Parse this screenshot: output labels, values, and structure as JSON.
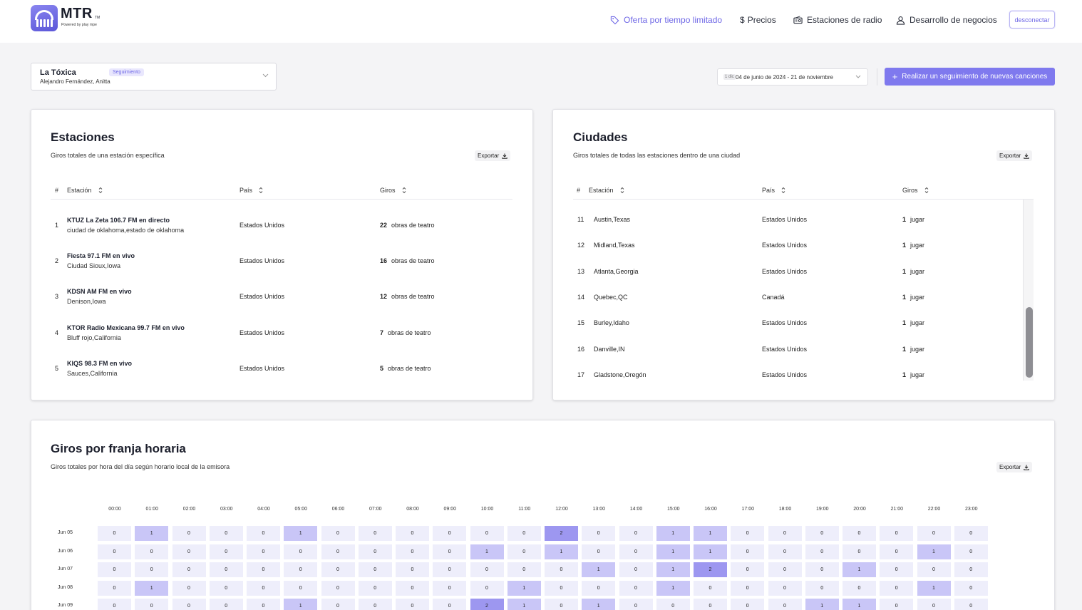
{
  "header": {
    "brand": "MTR",
    "brand_tm": "TM",
    "powered_by": "Powered by play mpe",
    "nav": [
      {
        "label": "Oferta por tiempo limitado",
        "icon": "tag-icon"
      },
      {
        "label": "Precios",
        "icon": "dollar-icon"
      },
      {
        "label": "Estaciones de radio",
        "icon": "radio-icon"
      },
      {
        "label": "Desarrollo de negocios",
        "icon": "user-icon"
      }
    ],
    "logout_label": "desconectar"
  },
  "song": {
    "title": "La Tóxica",
    "badge": "Seguimiento",
    "artists": "Alejandro Fernández, Anitta"
  },
  "date_range": {
    "icon_label": "1 dic",
    "value": "04 de junio de 2024 - 21 de noviembre"
  },
  "track_button_label": "Realizar un seguimiento de nuevas canciones",
  "export_label": "Exportar",
  "stations": {
    "title": "Estaciones",
    "subtitle": "Giros totales de una estación específica",
    "columns": {
      "num": "#",
      "station": "Estación",
      "country": "País",
      "spins": "Giros"
    },
    "rows": [
      {
        "num": "1",
        "name": "KTUZ La Zeta 106.7 FM en directo",
        "city": "ciudad de oklahoma,estado de oklahoma",
        "country": "Estados Unidos",
        "spins": "22",
        "unit": "obras de teatro"
      },
      {
        "num": "2",
        "name": "Fiesta 97.1 FM en vivo",
        "city": "Ciudad Sioux,Iowa",
        "country": "Estados Unidos",
        "spins": "16",
        "unit": "obras de teatro"
      },
      {
        "num": "3",
        "name": "KDSN AM FM en vivo",
        "city": "Denison,Iowa",
        "country": "Estados Unidos",
        "spins": "12",
        "unit": "obras de teatro"
      },
      {
        "num": "4",
        "name": "KTOR Radio Mexicana 99.7 FM en vivo",
        "city": "Bluff rojo,California",
        "country": "Estados Unidos",
        "spins": "7",
        "unit": "obras de teatro"
      },
      {
        "num": "5",
        "name": "KIQS 98.3 FM en vivo",
        "city": "Sauces,California",
        "country": "Estados Unidos",
        "spins": "5",
        "unit": "obras de teatro"
      }
    ]
  },
  "cities": {
    "title": "Ciudades",
    "subtitle": "Giros totales de todas las estaciones dentro de una ciudad",
    "columns": {
      "num": "#",
      "station": "Estación",
      "country": "País",
      "spins": "Giros"
    },
    "rows": [
      {
        "num": "11",
        "city": "Austin,Texas",
        "country": "Estados Unidos",
        "spins": "1",
        "unit": "jugar"
      },
      {
        "num": "12",
        "city": "Midland,Texas",
        "country": "Estados Unidos",
        "spins": "1",
        "unit": "jugar"
      },
      {
        "num": "13",
        "city": "Atlanta,Georgia",
        "country": "Estados Unidos",
        "spins": "1",
        "unit": "jugar"
      },
      {
        "num": "14",
        "city": "Quebec,QC",
        "country": "Canadá",
        "spins": "1",
        "unit": "jugar"
      },
      {
        "num": "15",
        "city": "Burley,Idaho",
        "country": "Estados Unidos",
        "spins": "1",
        "unit": "jugar"
      },
      {
        "num": "16",
        "city": "Danville,IN",
        "country": "Estados Unidos",
        "spins": "1",
        "unit": "jugar"
      },
      {
        "num": "17",
        "city": "Gladstone,Oregón",
        "country": "Estados Unidos",
        "spins": "1",
        "unit": "jugar"
      }
    ]
  },
  "heatmap": {
    "title": "Giros por franja horaria",
    "subtitle": "Giros totales por hora del día según horario local de la emisora",
    "hours": [
      "00:00",
      "01:00",
      "02:00",
      "03:00",
      "04:00",
      "05:00",
      "06:00",
      "07:00",
      "08:00",
      "09:00",
      "10:00",
      "11:00",
      "12:00",
      "13:00",
      "14:00",
      "15:00",
      "16:00",
      "17:00",
      "18:00",
      "19:00",
      "20:00",
      "21:00",
      "22:00",
      "23:00"
    ],
    "days": [
      "Jun 05",
      "Jun 06",
      "Jun 07",
      "Jun 08",
      "Jun 09"
    ],
    "values": [
      [
        0,
        1,
        0,
        0,
        0,
        1,
        0,
        0,
        0,
        0,
        0,
        0,
        2,
        0,
        0,
        1,
        1,
        0,
        0,
        0,
        0,
        0,
        0,
        0
      ],
      [
        0,
        0,
        0,
        0,
        0,
        0,
        0,
        0,
        0,
        0,
        1,
        0,
        1,
        0,
        0,
        1,
        1,
        0,
        0,
        0,
        0,
        0,
        1,
        0
      ],
      [
        0,
        0,
        0,
        0,
        0,
        0,
        0,
        0,
        0,
        0,
        0,
        0,
        0,
        1,
        0,
        1,
        2,
        0,
        0,
        0,
        1,
        0,
        0,
        0
      ],
      [
        0,
        1,
        0,
        0,
        0,
        0,
        0,
        0,
        0,
        0,
        0,
        1,
        0,
        0,
        0,
        1,
        0,
        0,
        0,
        0,
        0,
        0,
        1,
        0
      ],
      [
        0,
        0,
        0,
        0,
        0,
        1,
        0,
        0,
        0,
        0,
        2,
        1,
        0,
        1,
        0,
        0,
        0,
        0,
        0,
        1,
        1,
        0,
        0,
        0
      ]
    ],
    "colors": {
      "zero": "#eeeefb",
      "one": "#c9c6f7",
      "two": "#9d97f0"
    }
  },
  "colors": {
    "accent": "#7f79ee",
    "accent_text": "#6f68e6"
  }
}
